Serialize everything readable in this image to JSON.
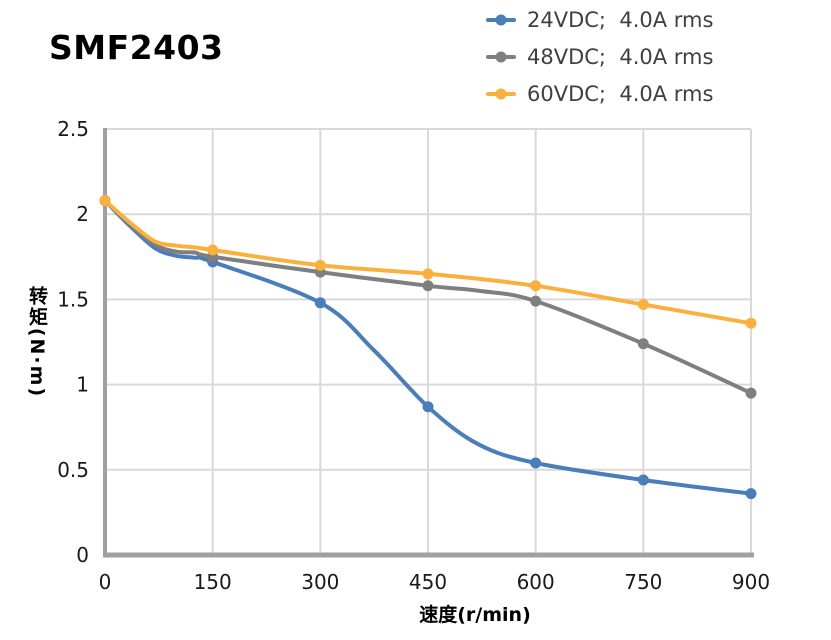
{
  "chart_data": {
    "type": "line",
    "title": "SMF2403",
    "xlabel": "速度(r/min)",
    "ylabel": "转矩(N·m)",
    "xlim": [
      0,
      900
    ],
    "ylim": [
      0,
      2.5
    ],
    "grid": true,
    "legend_position": "top-right",
    "xticks": {
      "values": [
        0,
        150,
        300,
        450,
        600,
        750,
        900
      ],
      "labels": [
        "0",
        "150",
        "300",
        "450",
        "600",
        "750",
        "900"
      ]
    },
    "yticks": {
      "values": [
        0,
        0.5,
        1,
        1.5,
        2,
        2.5
      ],
      "labels": [
        "0",
        "0.5",
        "1",
        "1.5",
        "2",
        "2.5"
      ]
    },
    "x": [
      0,
      150,
      300,
      450,
      600,
      750,
      900
    ],
    "series": [
      {
        "name": "24VDC;  4.0A rms",
        "color": "#4A7EBB",
        "values": [
          2.08,
          1.72,
          1.48,
          0.87,
          0.54,
          0.44,
          0.36
        ],
        "shape_points": [
          [
            35,
            1.93
          ],
          [
            70,
            1.8
          ],
          [
            100,
            1.755
          ],
          [
            125,
            1.745
          ],
          [
            375,
            1.2
          ],
          [
            520,
            0.65
          ]
        ]
      },
      {
        "name": "48VDC;  4.0A rms",
        "color": "#7F7F7F",
        "values": [
          2.08,
          1.75,
          1.66,
          1.58,
          1.49,
          1.24,
          0.95
        ],
        "shape_points": [
          [
            35,
            1.94
          ],
          [
            70,
            1.82
          ],
          [
            100,
            1.78
          ],
          [
            125,
            1.775
          ],
          [
            522,
            1.55
          ]
        ]
      },
      {
        "name": "60VDC;  4.0A rms",
        "color": "#F9B13B",
        "values": [
          2.08,
          1.79,
          1.7,
          1.65,
          1.58,
          1.47,
          1.36
        ],
        "shape_points": [
          [
            35,
            1.95
          ],
          [
            70,
            1.84
          ],
          [
            100,
            1.815
          ],
          [
            125,
            1.805
          ]
        ]
      }
    ],
    "styles": {
      "grid_color": "#D9D9D9",
      "axis_color": "#A0A0A0",
      "tick_color": "#1a1a1a",
      "legend_text_color": "#404040",
      "line_width": 4,
      "marker_radius": 5.5
    }
  }
}
